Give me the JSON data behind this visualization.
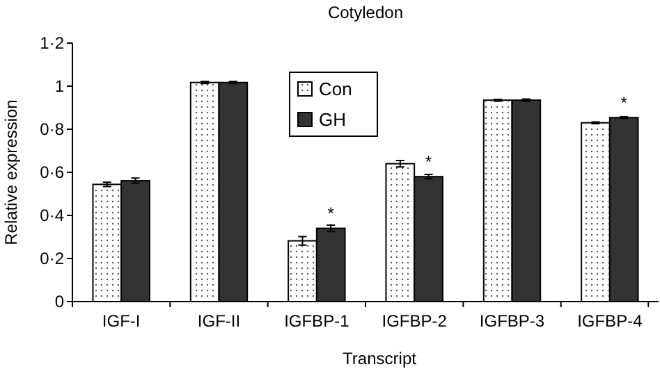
{
  "chart_data": {
    "type": "bar",
    "title": "Cotyledon",
    "xlabel": "Transcript",
    "ylabel": "Relative expression",
    "categories": [
      "IGF-I",
      "IGF-II",
      "IGFBP-1",
      "IGFBP-2",
      "IGFBP-3",
      "IGFBP-4"
    ],
    "series": [
      {
        "name": "Con",
        "color": "#ffffff",
        "values": [
          0.544,
          1.017,
          0.282,
          0.64,
          0.935,
          0.83
        ],
        "errors": [
          0.01,
          0.005,
          0.02,
          0.015,
          0.004,
          0.004
        ]
      },
      {
        "name": "GH",
        "color": "#333333",
        "values": [
          0.561,
          1.017,
          0.34,
          0.58,
          0.935,
          0.854
        ],
        "errors": [
          0.012,
          0.005,
          0.015,
          0.01,
          0.005,
          0.004
        ]
      }
    ],
    "ylim": [
      0,
      1.2
    ],
    "yticks": [
      0,
      {
        "value": 0.2,
        "label": "0·2"
      },
      {
        "value": 0.4,
        "label": "0·4"
      },
      {
        "value": 0.6,
        "label": "0·6"
      },
      {
        "value": 0.8,
        "label": "0·8"
      },
      1,
      {
        "value": 1.2,
        "label": "1·2"
      }
    ],
    "annotations": [
      {
        "text": "*",
        "x": "IGFBP-1",
        "y": 0.34
      },
      {
        "text": "*",
        "x": "IGFBP-2",
        "y": 0.58
      },
      {
        "text": "*",
        "x": "IGFBP-4",
        "y": 0.854
      }
    ],
    "legend": "top",
    "grid": false
  }
}
